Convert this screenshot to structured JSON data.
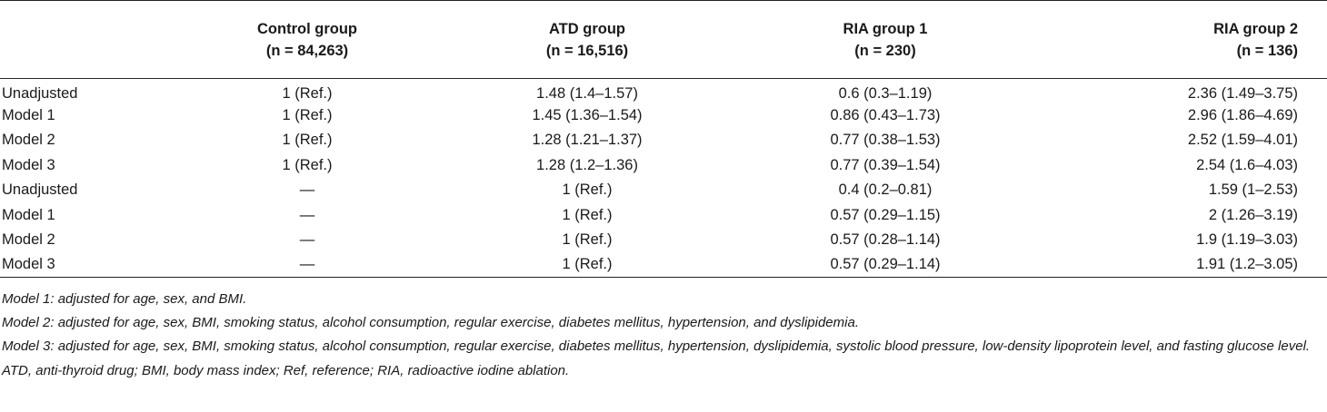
{
  "table": {
    "headers": [
      {
        "line1": "",
        "line2": ""
      },
      {
        "line1": "Control group",
        "line2": "(n = 84,263)"
      },
      {
        "line1": "ATD group",
        "line2": "(n = 16,516)"
      },
      {
        "line1": "RIA group 1",
        "line2": "(n = 230)"
      },
      {
        "line1": "RIA group 2",
        "line2": "(n = 136)"
      }
    ],
    "rows": [
      [
        "Unadjusted",
        "1 (Ref.)",
        "1.48 (1.4–1.57)",
        "0.6 (0.3–1.19)",
        "2.36 (1.49–3.75)"
      ],
      [
        "Model 1",
        "1 (Ref.)",
        "1.45 (1.36–1.54)",
        "0.86 (0.43–1.73)",
        "2.96 (1.86–4.69)"
      ],
      [
        "Model 2",
        "1 (Ref.)",
        "1.28 (1.21–1.37)",
        "0.77 (0.38–1.53)",
        "2.52 (1.59–4.01)"
      ],
      [
        "Model 3",
        "1 (Ref.)",
        "1.28 (1.2–1.36)",
        "0.77 (0.39–1.54)",
        "2.54 (1.6–4.03)"
      ],
      [
        "Unadjusted",
        "—",
        "1 (Ref.)",
        "0.4 (0.2–0.81)",
        "1.59 (1–2.53)"
      ],
      [
        "Model 1",
        "—",
        "1 (Ref.)",
        "0.57 (0.29–1.15)",
        "2 (1.26–3.19)"
      ],
      [
        "Model 2",
        "—",
        "1 (Ref.)",
        "0.57 (0.28–1.14)",
        "1.9 (1.19–3.03)"
      ],
      [
        "Model 3",
        "—",
        "1 (Ref.)",
        "0.57 (0.29–1.14)",
        "1.91 (1.2–3.05)"
      ]
    ]
  },
  "footnotes": [
    "Model 1: adjusted for age, sex, and BMI.",
    "Model 2: adjusted for age, sex, BMI, smoking status, alcohol consumption, regular exercise, diabetes mellitus, hypertension, and dyslipidemia.",
    "Model 3: adjusted for age, sex, BMI, smoking status, alcohol consumption, regular exercise, diabetes mellitus, hypertension, dyslipidemia, systolic blood pressure, low-density lipoprotein level, and fasting glucose level.",
    "ATD, anti-thyroid drug; BMI, body mass index; Ref, reference; RIA, radioactive iodine ablation."
  ]
}
